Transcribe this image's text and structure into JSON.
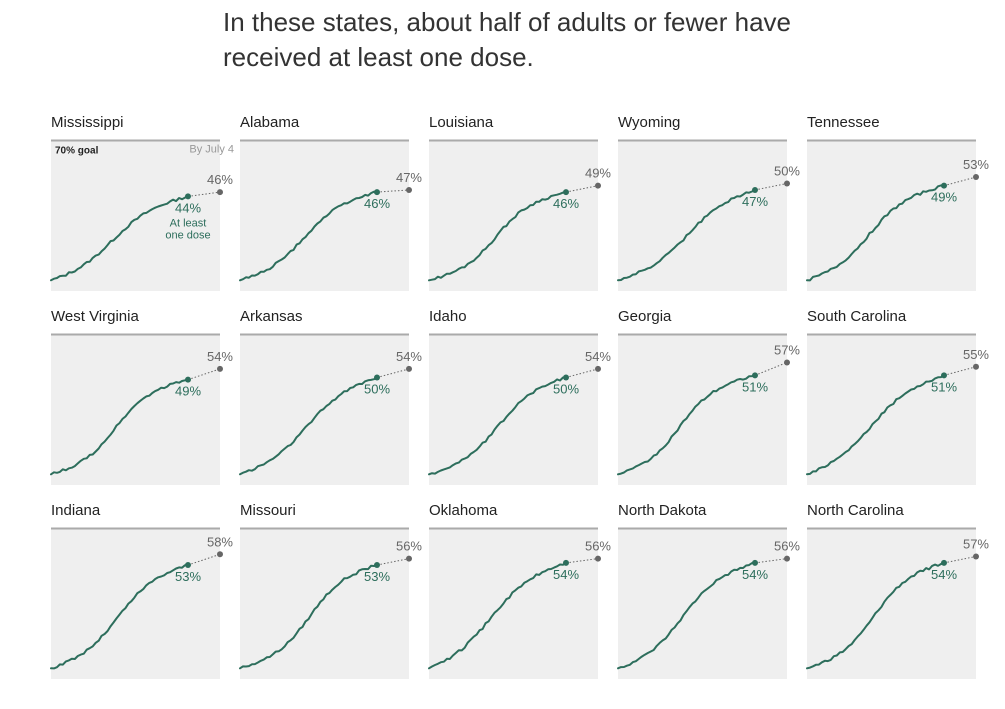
{
  "headline": "In these states, about half of adults or fewer have received at least one dose.",
  "colors": {
    "accent": "#2d6e5c",
    "projection": "#666666",
    "panel_bg": "#efefef",
    "goal_line": "#aaaaaa"
  },
  "annotations": {
    "goal_label": "70% goal",
    "projection_label": "By July 4",
    "current_label_line1": "At least",
    "current_label_line2": "one dose"
  },
  "chart_data": {
    "type": "line",
    "title": "",
    "ylim": [
      0,
      100
    ],
    "goal": 70,
    "states": [
      {
        "name": "Mississippi",
        "current": 44,
        "current_label": "44%",
        "projected": 46,
        "projected_label": "46%"
      },
      {
        "name": "Alabama",
        "current": 46,
        "current_label": "46%",
        "projected": 47,
        "projected_label": "47%"
      },
      {
        "name": "Louisiana",
        "current": 46,
        "current_label": "46%",
        "projected": 49,
        "projected_label": "49%"
      },
      {
        "name": "Wyoming",
        "current": 47,
        "current_label": "47%",
        "projected": 50,
        "projected_label": "50%"
      },
      {
        "name": "Tennessee",
        "current": 49,
        "current_label": "49%",
        "projected": 53,
        "projected_label": "53%"
      },
      {
        "name": "West Virginia",
        "current": 49,
        "current_label": "49%",
        "projected": 54,
        "projected_label": "54%"
      },
      {
        "name": "Arkansas",
        "current": 50,
        "current_label": "50%",
        "projected": 54,
        "projected_label": "54%"
      },
      {
        "name": "Idaho",
        "current": 50,
        "current_label": "50%",
        "projected": 54,
        "projected_label": "54%"
      },
      {
        "name": "Georgia",
        "current": 51,
        "current_label": "51%",
        "projected": 57,
        "projected_label": "57%"
      },
      {
        "name": "South Carolina",
        "current": 51,
        "current_label": "51%",
        "projected": 55,
        "projected_label": "55%"
      },
      {
        "name": "Indiana",
        "current": 53,
        "current_label": "53%",
        "projected": 58,
        "projected_label": "58%"
      },
      {
        "name": "Missouri",
        "current": 53,
        "current_label": "53%",
        "projected": 56,
        "projected_label": "56%"
      },
      {
        "name": "Oklahoma",
        "current": 54,
        "current_label": "54%",
        "projected": 56,
        "projected_label": "56%"
      },
      {
        "name": "North Dakota",
        "current": 54,
        "current_label": "54%",
        "projected": 56,
        "projected_label": "56%"
      },
      {
        "name": "North Carolina",
        "current": 54,
        "current_label": "54%",
        "projected": 57,
        "projected_label": "57%"
      }
    ]
  }
}
